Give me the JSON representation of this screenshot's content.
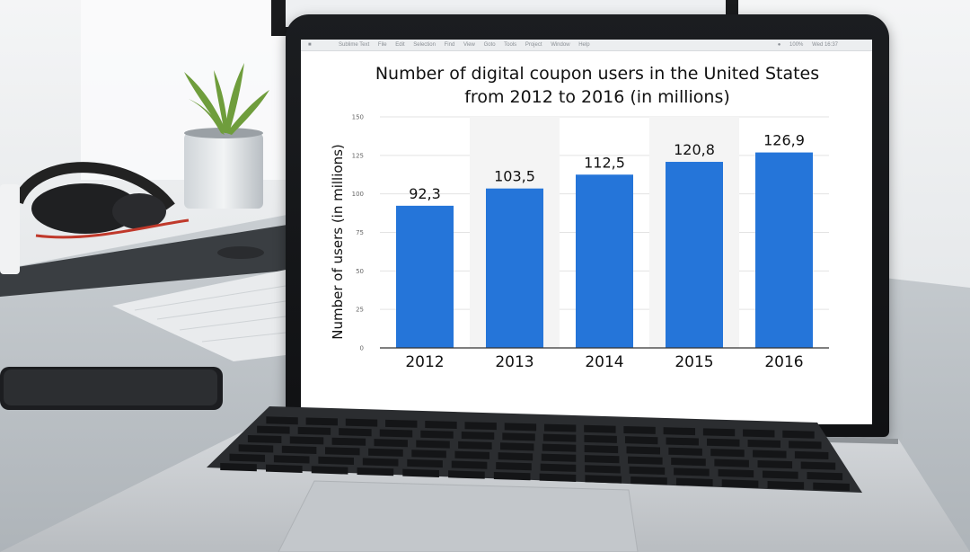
{
  "menubar": {
    "app": "Sublime Text",
    "items": [
      "File",
      "Edit",
      "Selection",
      "Find",
      "View",
      "Goto",
      "Tools",
      "Project",
      "Window",
      "Help"
    ],
    "status": "100%",
    "time": "Wed 16:37"
  },
  "colors": {
    "bar": "#2575d9",
    "grid": "#e3e3e3",
    "band": "#f4f4f4"
  },
  "chart_data": {
    "type": "bar",
    "title_line1": "Number of digital coupon users in the United States",
    "title_line2": "from 2012 to 2016 (in millions)",
    "xlabel": "",
    "ylabel": "Number of users (in millions)",
    "ylim": [
      0,
      150
    ],
    "yticks": [
      "0",
      "25",
      "50",
      "75",
      "100",
      "125",
      "150"
    ],
    "categories": [
      "2012",
      "2013",
      "2014",
      "2015",
      "2016"
    ],
    "values": [
      92.3,
      103.5,
      112.5,
      120.8,
      126.9
    ],
    "value_labels": [
      "92,3",
      "103,5",
      "112,5",
      "120,8",
      "126,9"
    ],
    "grid": true
  }
}
